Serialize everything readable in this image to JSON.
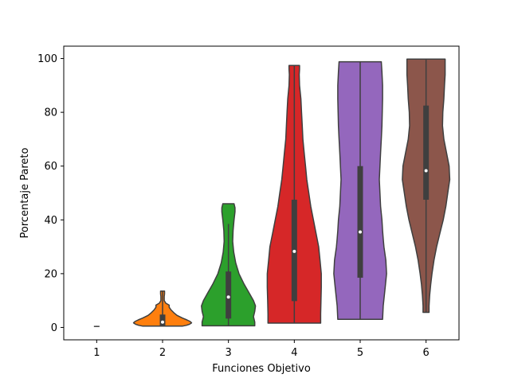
{
  "chart_data": {
    "type": "violin",
    "xlabel": "Funciones Objetivo",
    "ylabel": "Porcentaje Pareto",
    "ylim": [
      -4.6,
      104.6
    ],
    "yticks": [
      0,
      20,
      40,
      60,
      80,
      100
    ],
    "categories": [
      "1",
      "2",
      "3",
      "4",
      "5",
      "6"
    ],
    "grid": false,
    "violins": [
      {
        "category": "1",
        "color": "#1f77b4",
        "min": 0.4,
        "max": 0.6,
        "q1": 0.4,
        "median": 0.5,
        "q3": 0.6,
        "whisker_low": 0.4,
        "whisker_high": 0.6,
        "profile": []
      },
      {
        "category": "2",
        "color": "#ff7f0e",
        "min": 0.5,
        "max": 13.5,
        "q1": 0.5,
        "median": 2.0,
        "q3": 4.8,
        "whisker_low": 0.5,
        "whisker_high": 13.5,
        "profile": [
          [
            0.5,
            0.3
          ],
          [
            0.8,
            0.36
          ],
          [
            1.2,
            0.41
          ],
          [
            1.7,
            0.44
          ],
          [
            2.2,
            0.42
          ],
          [
            2.8,
            0.37
          ],
          [
            3.5,
            0.3
          ],
          [
            4.5,
            0.22
          ],
          [
            5.5,
            0.17
          ],
          [
            6.5,
            0.13
          ],
          [
            7.5,
            0.1
          ],
          [
            8.3,
            0.1
          ],
          [
            9.0,
            0.05
          ],
          [
            10.0,
            0.025
          ],
          [
            11.5,
            0.025
          ],
          [
            12.5,
            0.03
          ],
          [
            13.5,
            0.03
          ]
        ]
      },
      {
        "category": "3",
        "color": "#2ca02c",
        "min": 0.6,
        "max": 46,
        "q1": 3.3,
        "median": 11.3,
        "q3": 20.8,
        "whisker_low": 0.6,
        "whisker_high": 38.5,
        "profile": [
          [
            0.6,
            0.4
          ],
          [
            2,
            0.4
          ],
          [
            4,
            0.38
          ],
          [
            6,
            0.4
          ],
          [
            8,
            0.41
          ],
          [
            10,
            0.38
          ],
          [
            13,
            0.31
          ],
          [
            16,
            0.24
          ],
          [
            20,
            0.16
          ],
          [
            24,
            0.11
          ],
          [
            28,
            0.08
          ],
          [
            32,
            0.065
          ],
          [
            36,
            0.07
          ],
          [
            40,
            0.085
          ],
          [
            43,
            0.1
          ],
          [
            44.5,
            0.1
          ],
          [
            46,
            0.085
          ]
        ]
      },
      {
        "category": "4",
        "color": "#d62728",
        "min": 1.6,
        "max": 97.4,
        "q1": 9.8,
        "median": 28.3,
        "q3": 47.5,
        "whisker_low": 1.6,
        "whisker_high": 97.4,
        "profile": [
          [
            1.6,
            0.4
          ],
          [
            5,
            0.4
          ],
          [
            10,
            0.405
          ],
          [
            15,
            0.41
          ],
          [
            20,
            0.41
          ],
          [
            25,
            0.39
          ],
          [
            30,
            0.37
          ],
          [
            35,
            0.33
          ],
          [
            40,
            0.29
          ],
          [
            45,
            0.25
          ],
          [
            50,
            0.22
          ],
          [
            55,
            0.19
          ],
          [
            60,
            0.17
          ],
          [
            65,
            0.15
          ],
          [
            70,
            0.13
          ],
          [
            75,
            0.12
          ],
          [
            80,
            0.11
          ],
          [
            85,
            0.1
          ],
          [
            90,
            0.08
          ],
          [
            94,
            0.075
          ],
          [
            96,
            0.08
          ],
          [
            97.4,
            0.08
          ]
        ]
      },
      {
        "category": "5",
        "color": "#9467bd",
        "min": 3.0,
        "max": 98.8,
        "q1": 18.5,
        "median": 35.5,
        "q3": 60.0,
        "whisker_low": 3.0,
        "whisker_high": 98.8,
        "profile": [
          [
            3,
            0.34
          ],
          [
            8,
            0.35
          ],
          [
            15,
            0.38
          ],
          [
            20,
            0.4
          ],
          [
            25,
            0.39
          ],
          [
            30,
            0.36
          ],
          [
            33,
            0.35
          ],
          [
            36,
            0.34
          ],
          [
            40,
            0.33
          ],
          [
            45,
            0.31
          ],
          [
            50,
            0.3
          ],
          [
            55,
            0.29
          ],
          [
            60,
            0.3
          ],
          [
            65,
            0.31
          ],
          [
            70,
            0.32
          ],
          [
            75,
            0.33
          ],
          [
            80,
            0.335
          ],
          [
            85,
            0.34
          ],
          [
            90,
            0.34
          ],
          [
            95,
            0.33
          ],
          [
            98.8,
            0.32
          ]
        ]
      },
      {
        "category": "6",
        "color": "#8c564b",
        "min": 5.6,
        "max": 99.8,
        "q1": 47.5,
        "median": 58.3,
        "q3": 82.5,
        "whisker_low": 5.6,
        "whisker_high": 99.8,
        "profile": [
          [
            5.6,
            0.045
          ],
          [
            8,
            0.045
          ],
          [
            12,
            0.055
          ],
          [
            16,
            0.07
          ],
          [
            20,
            0.09
          ],
          [
            25,
            0.12
          ],
          [
            30,
            0.16
          ],
          [
            35,
            0.21
          ],
          [
            40,
            0.26
          ],
          [
            45,
            0.3
          ],
          [
            50,
            0.33
          ],
          [
            55,
            0.36
          ],
          [
            60,
            0.35
          ],
          [
            65,
            0.31
          ],
          [
            70,
            0.27
          ],
          [
            75,
            0.25
          ],
          [
            80,
            0.255
          ],
          [
            85,
            0.27
          ],
          [
            90,
            0.28
          ],
          [
            94,
            0.29
          ],
          [
            97,
            0.29
          ],
          [
            99.8,
            0.29
          ]
        ]
      }
    ]
  }
}
